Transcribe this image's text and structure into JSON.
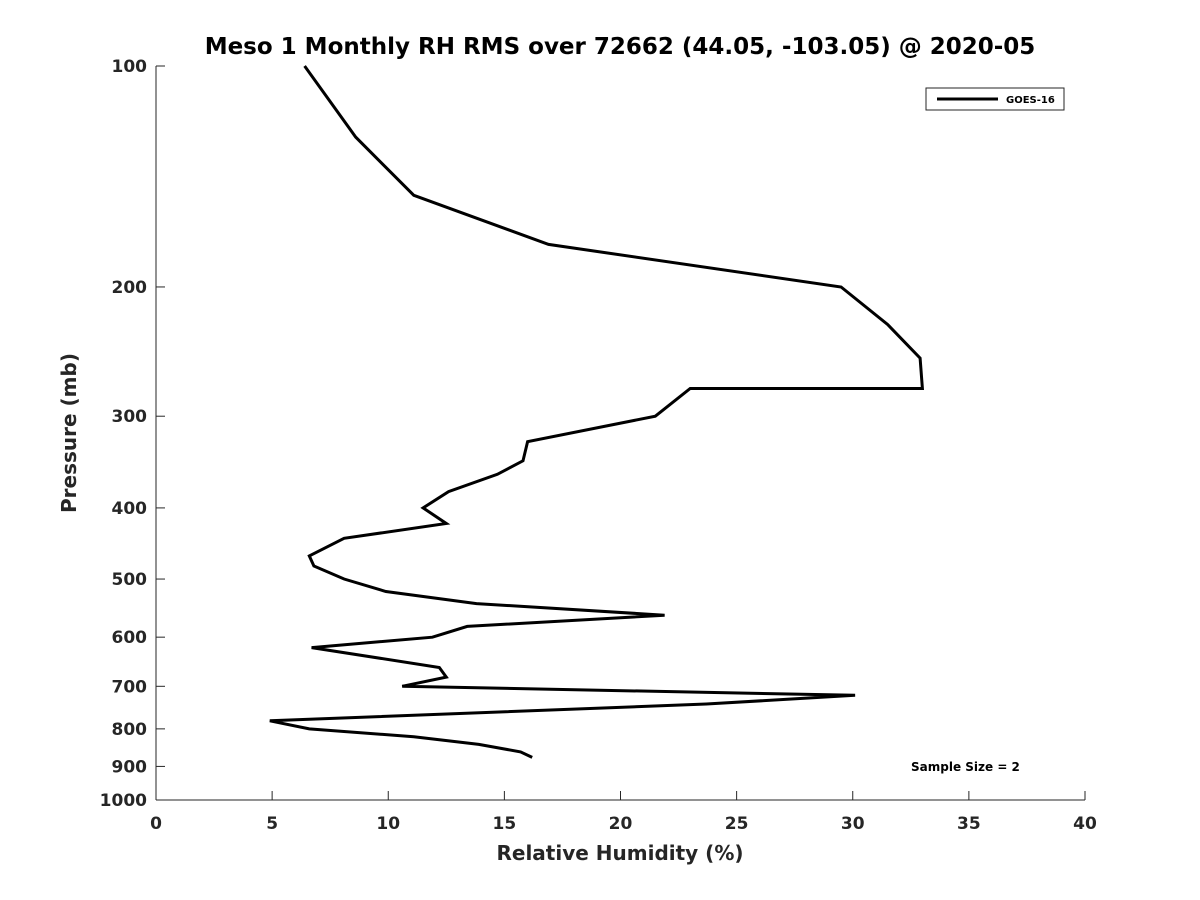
{
  "chart_data": {
    "type": "line",
    "title": "Meso 1 Monthly RH RMS over 72662 (44.05, -103.05) @ 2020-05",
    "xlabel": "Relative Humidity (%)",
    "ylabel": "Pressure (mb)",
    "xlim": [
      0,
      40
    ],
    "ylim": [
      100,
      1000
    ],
    "y_scale": "log",
    "y_reversed": true,
    "x_ticks": [
      0,
      5,
      10,
      15,
      20,
      25,
      30,
      35,
      40
    ],
    "y_ticks": [
      100,
      200,
      300,
      400,
      500,
      600,
      700,
      800,
      900,
      1000
    ],
    "grid": false,
    "legend_position": "top-right",
    "annotation": "Sample Size = 2",
    "series": [
      {
        "name": "GOES-16",
        "color": "#000000",
        "points": [
          {
            "x": 6.4,
            "y": 100
          },
          {
            "x": 8.6,
            "y": 125
          },
          {
            "x": 11.1,
            "y": 150
          },
          {
            "x": 16.9,
            "y": 175
          },
          {
            "x": 29.5,
            "y": 200
          },
          {
            "x": 31.5,
            "y": 225
          },
          {
            "x": 32.9,
            "y": 250
          },
          {
            "x": 33.0,
            "y": 275
          },
          {
            "x": 23.0,
            "y": 275
          },
          {
            "x": 21.5,
            "y": 300
          },
          {
            "x": 16.0,
            "y": 325
          },
          {
            "x": 15.8,
            "y": 345
          },
          {
            "x": 14.7,
            "y": 360
          },
          {
            "x": 12.6,
            "y": 380
          },
          {
            "x": 11.5,
            "y": 400
          },
          {
            "x": 12.5,
            "y": 420
          },
          {
            "x": 8.1,
            "y": 440
          },
          {
            "x": 6.6,
            "y": 465
          },
          {
            "x": 6.8,
            "y": 480
          },
          {
            "x": 8.1,
            "y": 500
          },
          {
            "x": 9.9,
            "y": 520
          },
          {
            "x": 13.8,
            "y": 540
          },
          {
            "x": 21.9,
            "y": 560
          },
          {
            "x": 13.4,
            "y": 580
          },
          {
            "x": 11.9,
            "y": 600
          },
          {
            "x": 6.7,
            "y": 620
          },
          {
            "x": 12.2,
            "y": 660
          },
          {
            "x": 12.5,
            "y": 680
          },
          {
            "x": 10.6,
            "y": 700
          },
          {
            "x": 30.1,
            "y": 720
          },
          {
            "x": 23.7,
            "y": 740
          },
          {
            "x": 4.9,
            "y": 780
          },
          {
            "x": 6.6,
            "y": 800
          },
          {
            "x": 11.1,
            "y": 820
          },
          {
            "x": 13.9,
            "y": 840
          },
          {
            "x": 15.7,
            "y": 860
          },
          {
            "x": 16.2,
            "y": 875
          }
        ]
      }
    ]
  }
}
